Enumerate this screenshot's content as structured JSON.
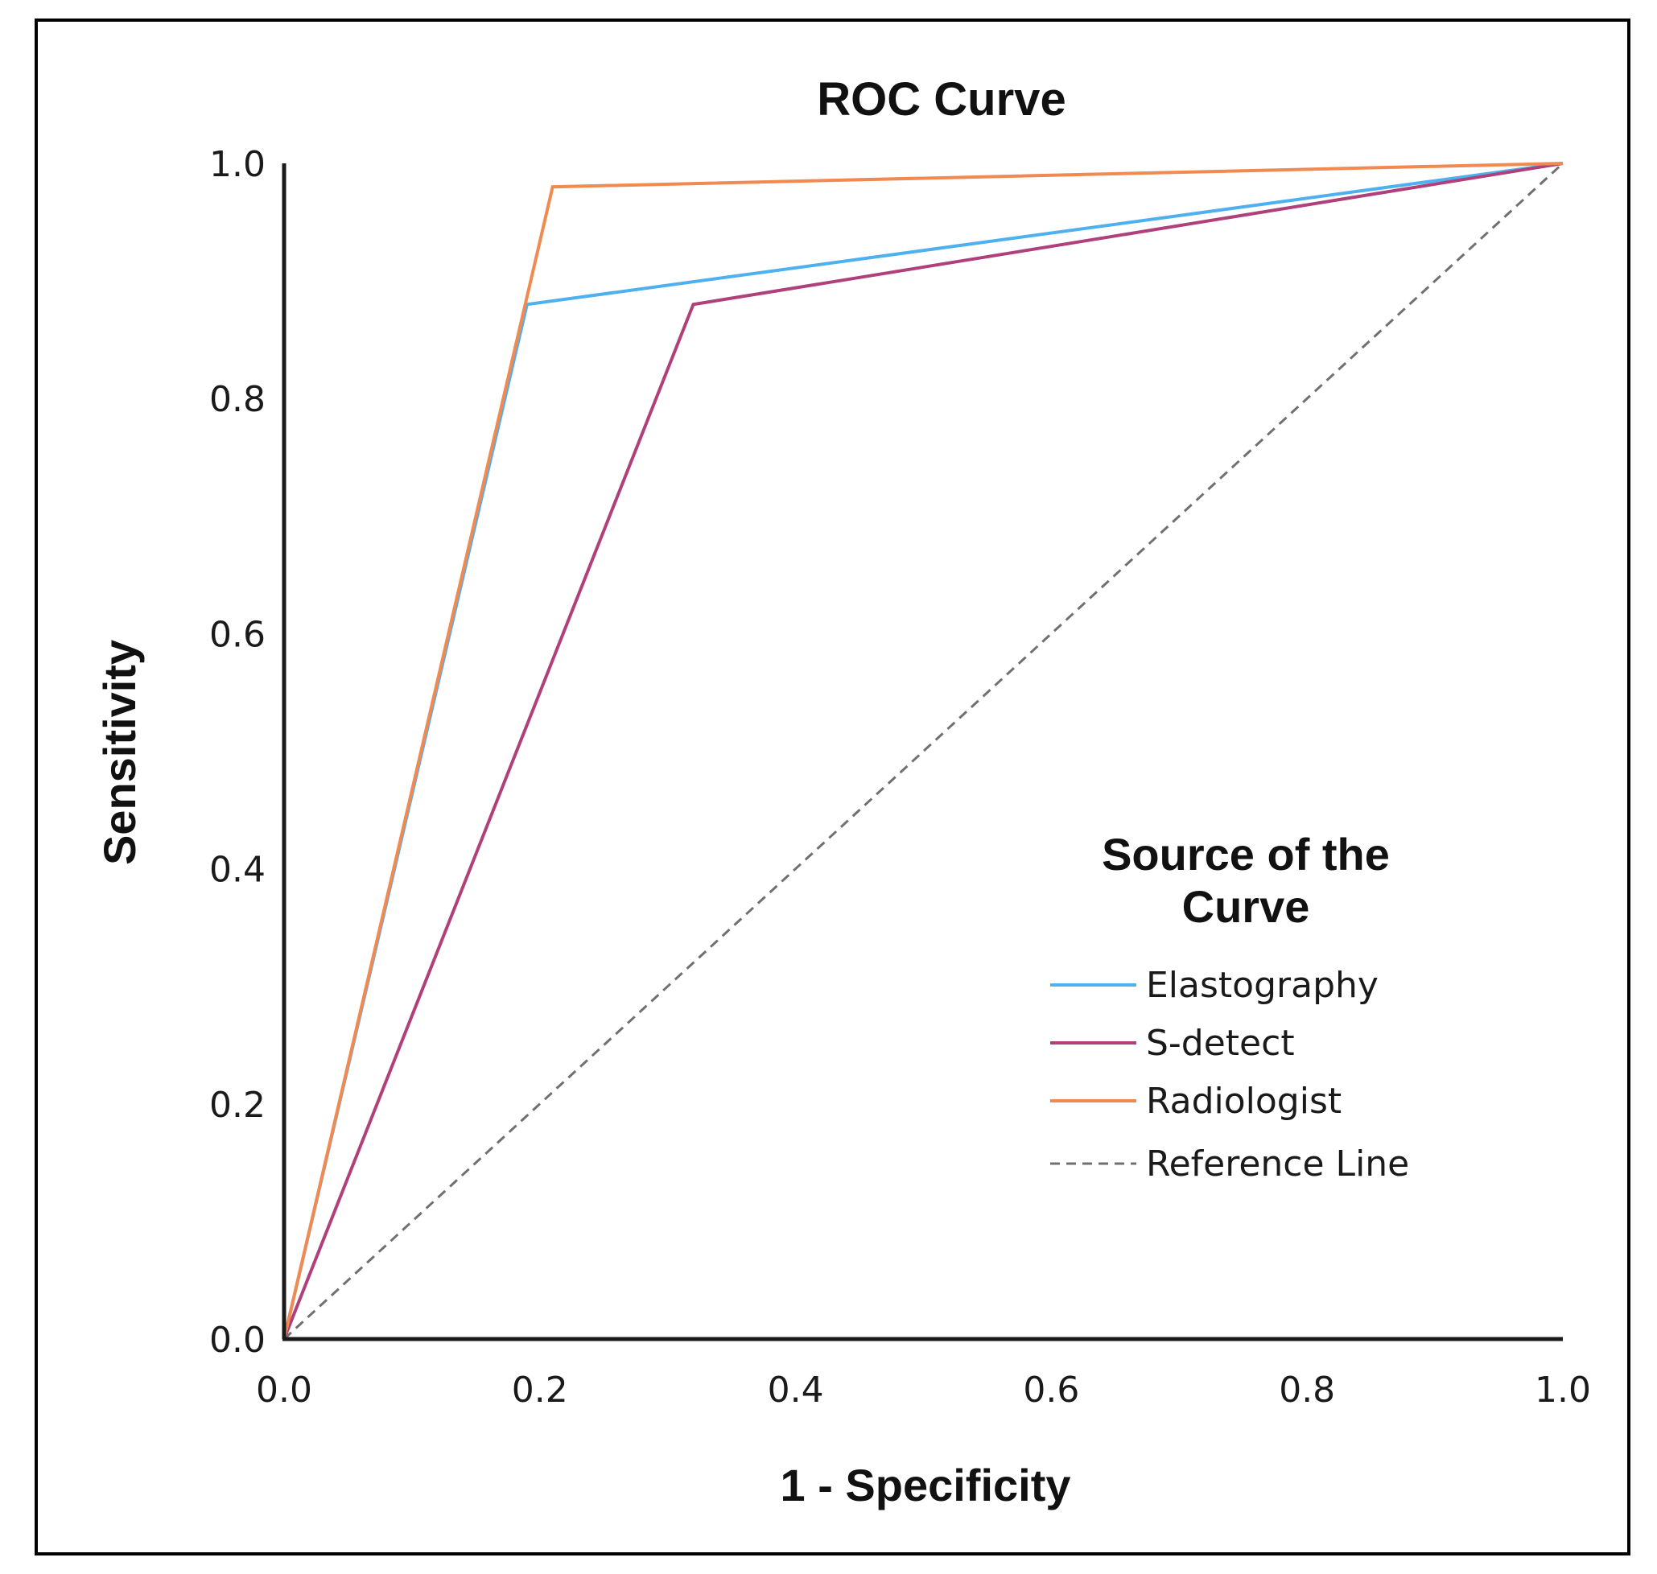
{
  "chart_data": {
    "type": "line",
    "title": "ROC Curve",
    "xlabel": "1 - Specificity",
    "ylabel": "Sensitivity",
    "xlim": [
      0,
      1
    ],
    "ylim": [
      0,
      1
    ],
    "xticks": [
      "0.0",
      "0.2",
      "0.4",
      "0.6",
      "0.8",
      "1.0"
    ],
    "yticks": [
      "0.0",
      "0.2",
      "0.4",
      "0.6",
      "0.8",
      "1.0"
    ],
    "grid": false,
    "legend": {
      "title_line1": "Source of the",
      "title_line2": "Curve",
      "placement": "center-right"
    },
    "series": [
      {
        "name": "Elastography",
        "color": "#4fb0f0",
        "dashed": false,
        "x": [
          0.0,
          0.19,
          1.0
        ],
        "y": [
          0.0,
          0.88,
          1.0
        ]
      },
      {
        "name": "S-detect",
        "color": "#b0407a",
        "dashed": false,
        "x": [
          0.0,
          0.32,
          1.0
        ],
        "y": [
          0.0,
          0.88,
          1.0
        ]
      },
      {
        "name": "Radiologist",
        "color": "#f08a50",
        "dashed": false,
        "x": [
          0.0,
          0.21,
          1.0
        ],
        "y": [
          0.0,
          0.98,
          1.0
        ]
      },
      {
        "name": "Reference Line",
        "color": "#707070",
        "dashed": true,
        "x": [
          0.0,
          1.0
        ],
        "y": [
          0.0,
          1.0
        ]
      }
    ]
  }
}
